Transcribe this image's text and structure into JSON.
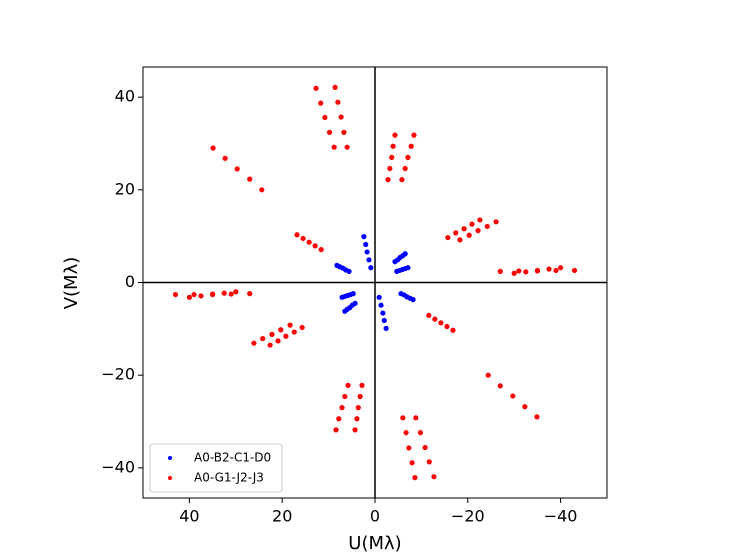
{
  "chart_data": {
    "type": "scatter",
    "xlabel": "U(Mλ)",
    "ylabel": "V(Mλ)",
    "xlim": [
      50,
      -50
    ],
    "ylim": [
      -46.5,
      46.5
    ],
    "xticks": [
      40,
      20,
      0,
      {
        "value": -20,
        "label": "−20"
      },
      {
        "value": -40,
        "label": "−40"
      }
    ],
    "yticks": [
      {
        "value": -40,
        "label": "−40"
      },
      {
        "value": -20,
        "label": "−20"
      },
      0,
      20,
      40
    ],
    "origin_lines": true,
    "legend": "lower left",
    "series": [
      {
        "name": "A0-B2-C1-D0",
        "color": "#0000ff",
        "x": [
          2.4,
          2.0,
          1.7,
          1.3,
          0.9,
          8.2,
          7.6,
          6.9,
          6.3,
          5.6,
          -4.3,
          -4.9,
          -5.4,
          -6.0,
          -6.5,
          -4.7,
          -5.3,
          -5.9,
          -6.5,
          -7.1,
          -2.4,
          -2.0,
          -1.7,
          -1.3,
          -0.9,
          -8.2,
          -7.6,
          -6.9,
          -6.3,
          -5.6,
          4.3,
          4.9,
          5.4,
          6.0,
          6.5,
          4.7,
          5.3,
          5.9,
          6.5,
          7.1
        ],
        "y": [
          9.9,
          8.2,
          6.6,
          4.9,
          3.2,
          3.7,
          3.4,
          3.1,
          2.7,
          2.4,
          4.5,
          4.9,
          5.4,
          5.8,
          6.2,
          2.4,
          2.6,
          2.8,
          3.0,
          3.2,
          -9.9,
          -8.2,
          -6.6,
          -4.9,
          -3.2,
          -3.7,
          -3.4,
          -3.1,
          -2.7,
          -2.4,
          -4.5,
          -4.9,
          -5.4,
          -5.8,
          -6.2,
          -2.4,
          -2.6,
          -2.8,
          -3.0,
          -3.2
        ]
      },
      {
        "name": "A0-G1-J2-J3",
        "color": "#ff0000",
        "x": [
          12.7,
          11.7,
          10.8,
          9.8,
          8.8,
          8.6,
          8.0,
          7.3,
          6.7,
          6.0,
          -4.3,
          -3.9,
          -3.6,
          -3.2,
          -2.8,
          -8.4,
          -7.8,
          -7.1,
          -6.5,
          -5.8,
          34.9,
          32.3,
          29.7,
          27.0,
          24.4,
          16.8,
          15.5,
          14.2,
          12.9,
          11.6,
          -15.7,
          -17.4,
          -19.2,
          -20.9,
          -22.6,
          -18.3,
          -20.3,
          -22.2,
          -24.2,
          -26.1,
          -27,
          -31,
          -35,
          -39,
          -43,
          -30,
          -32.5,
          -35,
          -37.5,
          -40,
          -12.7,
          -11.7,
          -10.8,
          -9.8,
          -8.8,
          -8.6,
          -8.0,
          -7.3,
          -6.7,
          -6.0,
          4.3,
          3.9,
          3.6,
          3.2,
          2.8,
          8.4,
          7.8,
          7.1,
          6.5,
          5.8,
          -34.9,
          -32.3,
          -29.7,
          -27.0,
          -24.4,
          -16.8,
          -15.5,
          -14.2,
          -12.9,
          -11.6,
          15.7,
          17.4,
          19.2,
          20.9,
          22.6,
          18.3,
          20.3,
          22.2,
          24.2,
          26.1,
          27,
          31,
          35,
          39,
          43,
          30,
          32.5,
          35,
          37.5,
          40
        ],
        "y": [
          41.9,
          38.7,
          35.6,
          32.4,
          29.2,
          42.1,
          38.9,
          35.7,
          32.4,
          29.2,
          31.8,
          29.4,
          27.0,
          24.6,
          22.2,
          31.8,
          29.4,
          27.0,
          24.6,
          22.2,
          29.0,
          26.8,
          24.5,
          22.3,
          20.0,
          10.3,
          9.5,
          8.7,
          7.9,
          7.1,
          9.7,
          10.7,
          11.6,
          12.6,
          13.5,
          9.2,
          10.2,
          11.2,
          12.1,
          13.1,
          2.4,
          2.5,
          2.5,
          2.6,
          2.6,
          2.0,
          2.3,
          2.6,
          2.9,
          3.2,
          -41.9,
          -38.7,
          -35.6,
          -32.4,
          -29.2,
          -42.1,
          -38.9,
          -35.7,
          -32.4,
          -29.2,
          -31.8,
          -29.4,
          -27.0,
          -24.6,
          -22.2,
          -31.8,
          -29.4,
          -27.0,
          -24.6,
          -22.2,
          -29.0,
          -26.8,
          -24.5,
          -22.3,
          -20.0,
          -10.3,
          -9.5,
          -8.7,
          -7.9,
          -7.1,
          -9.7,
          -10.7,
          -11.6,
          -12.6,
          -13.5,
          -9.2,
          -10.2,
          -11.2,
          -12.1,
          -13.1,
          -2.4,
          -2.5,
          -2.5,
          -2.6,
          -2.6,
          -2.0,
          -2.3,
          -2.6,
          -2.9,
          -3.2
        ]
      }
    ]
  }
}
